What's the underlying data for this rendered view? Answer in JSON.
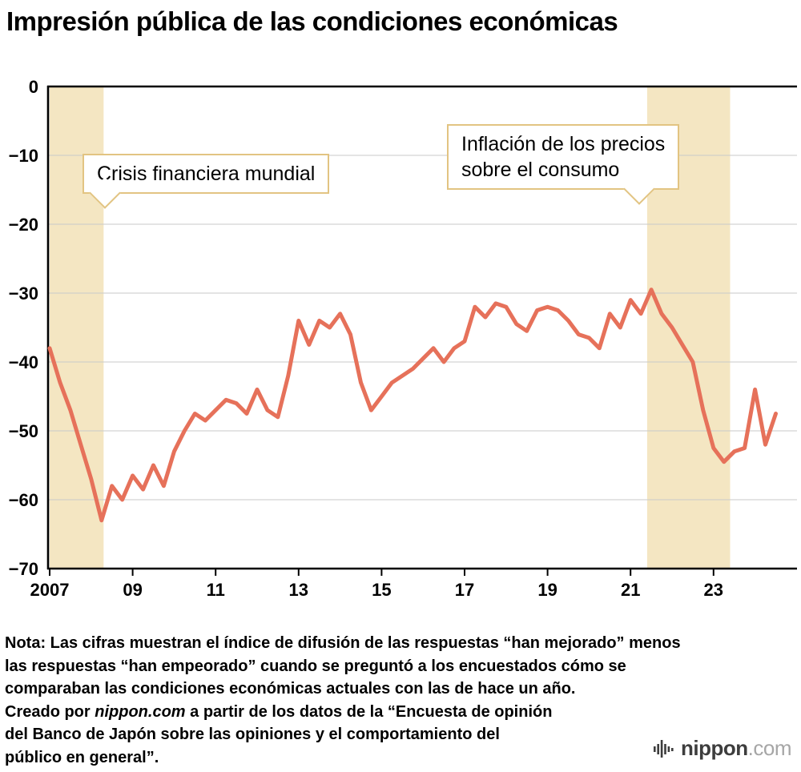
{
  "title": "Impresión pública de las condiciones económicas",
  "callouts": {
    "financial_crisis": {
      "label": "Crisis financiera mundial"
    },
    "inflation": {
      "line1": "Inflación de los precios",
      "line2": "sobre el consumo"
    }
  },
  "notes": {
    "line1": "Nota: Las cifras muestran el índice de difusión de las respuestas “han mejorado” menos",
    "line2": "las respuestas “han empeorado” cuando se preguntó a los encuestados cómo se",
    "line3": "comparaban las condiciones económicas actuales con las de hace un año.",
    "line4_pre": "Creado por ",
    "line4_em": "nippon.com",
    "line4_post": " a partir de los datos de la “Encuesta de opinión",
    "line5": "del Banco de Japón sobre las opiniones y el comportamiento del",
    "line6": "público en general”."
  },
  "logo": {
    "name": "nippon",
    "suffix": ".com"
  },
  "chart_data": {
    "type": "line",
    "title": "Impresión pública de las condiciones económicas",
    "frequency": "quarterly",
    "x_range": [
      2007.0,
      2024.5
    ],
    "x_step": 0.25,
    "ylim": [
      -70,
      0
    ],
    "grid": true,
    "line_color": "#e6715a",
    "band_color": "#f4e6c2",
    "y_ticks": [
      {
        "value": 0,
        "label": "0"
      },
      {
        "value": -10,
        "label": "−10"
      },
      {
        "value": -20,
        "label": "−20"
      },
      {
        "value": -30,
        "label": "−30"
      },
      {
        "value": -40,
        "label": "−40"
      },
      {
        "value": -50,
        "label": "−50"
      },
      {
        "value": -60,
        "label": "−60"
      },
      {
        "value": -70,
        "label": "−70"
      }
    ],
    "x_ticks": [
      {
        "year": 2007,
        "label": "2007"
      },
      {
        "year": 2009,
        "label": "09"
      },
      {
        "year": 2011,
        "label": "11"
      },
      {
        "year": 2013,
        "label": "13"
      },
      {
        "year": 2015,
        "label": "15"
      },
      {
        "year": 2017,
        "label": "17"
      },
      {
        "year": 2019,
        "label": "19"
      },
      {
        "year": 2021,
        "label": "21"
      },
      {
        "year": 2023,
        "label": "23"
      }
    ],
    "bands": [
      {
        "name": "financial-crisis-band",
        "from": 2007.0,
        "to": 2008.3,
        "label": "Crisis financiera mundial"
      },
      {
        "name": "inflation-band",
        "from": 2021.4,
        "to": 2023.4,
        "label": "Inflación de los precios sobre el consumo"
      }
    ],
    "series": [
      {
        "name": "Índice de difusión (han mejorado − han empeorado)",
        "values": [
          -38,
          -43,
          -47,
          -52,
          -57,
          -63,
          -58,
          -60,
          -56.5,
          -58.5,
          -55,
          -58,
          -53,
          -50,
          -47.5,
          -48.5,
          -47,
          -45.5,
          -46,
          -47.5,
          -44,
          -47,
          -48,
          -42,
          -34,
          -37.5,
          -34,
          -35,
          -33,
          -36,
          -43,
          -47,
          -45,
          -43,
          -42,
          -41,
          -39.5,
          -38,
          -40,
          -38,
          -37,
          -32,
          -33.5,
          -31.5,
          -32,
          -34.5,
          -35.5,
          -32.5,
          -32,
          -32.5,
          -34,
          -36,
          -36.5,
          -38,
          -33,
          -35,
          -31,
          -33,
          -29.5,
          -33,
          -35,
          -37.5,
          -40,
          -47,
          -52.5,
          -54.5,
          -53,
          -52.5,
          -44,
          -52,
          -47.5
        ]
      }
    ]
  }
}
